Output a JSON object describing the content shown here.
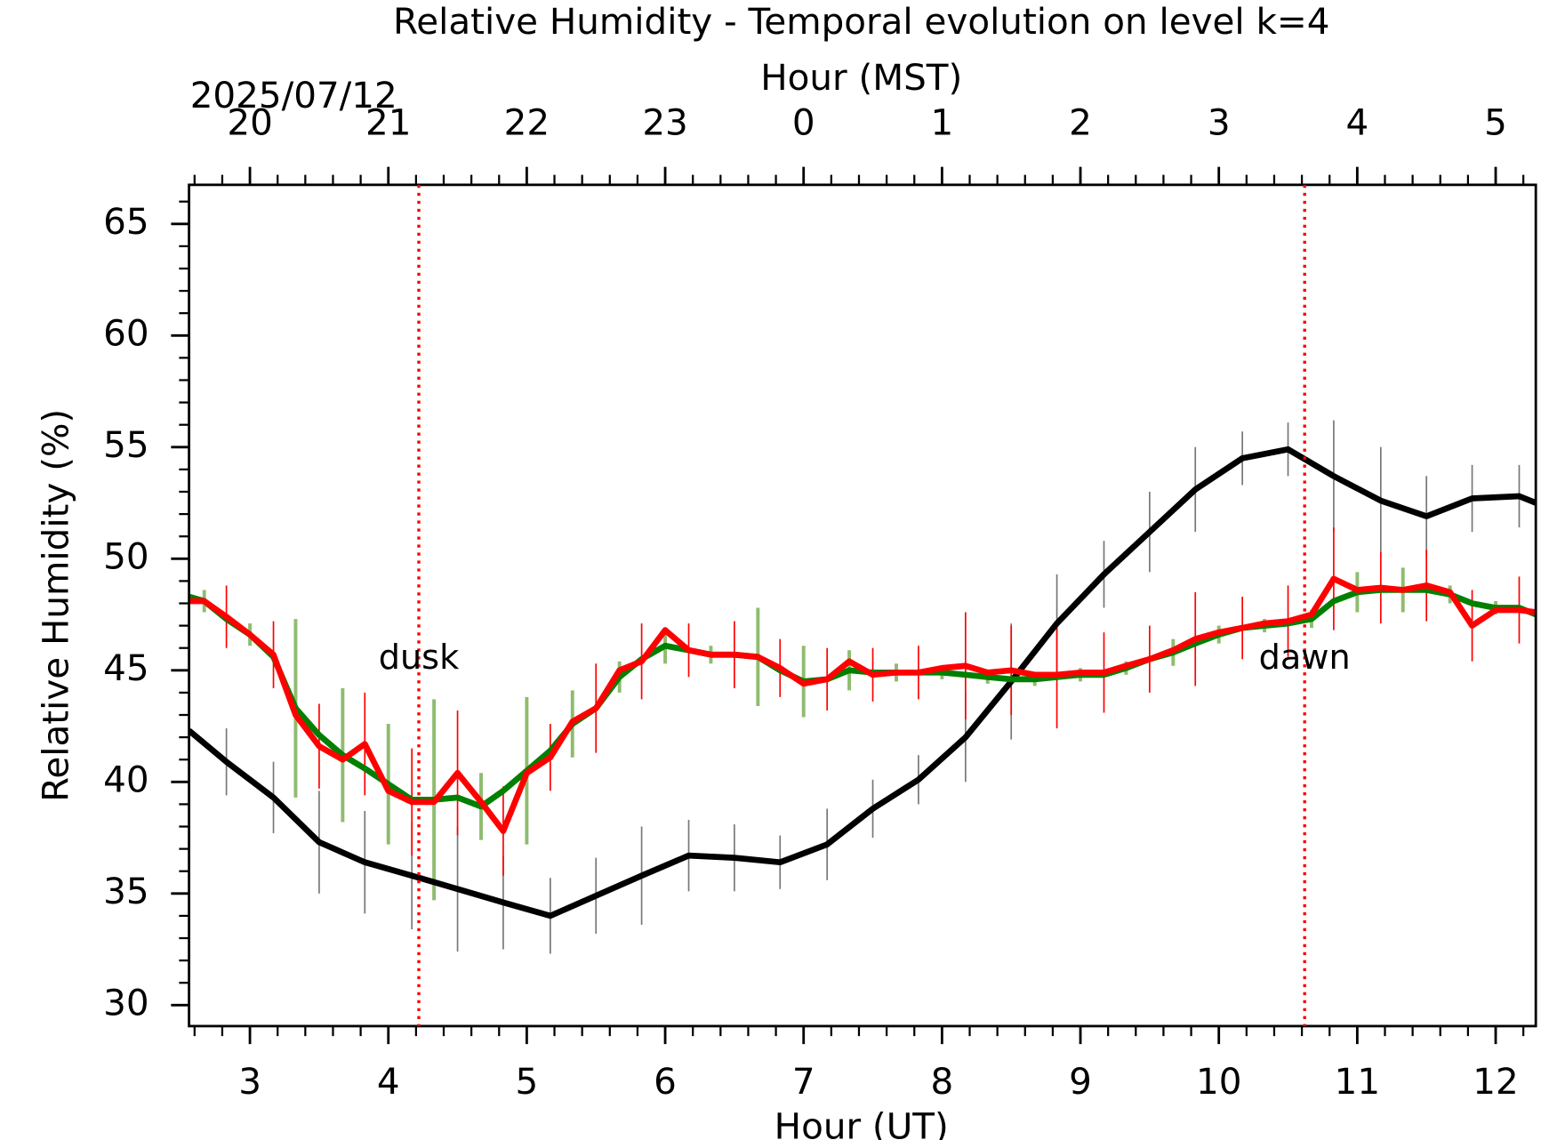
{
  "chart_data": {
    "type": "line",
    "title": "Relative Humidity - Temporal evolution on level k=4",
    "xlabel": "Hour (UT)",
    "ylabel": "Relative Humidity (%)",
    "x2label": "Hour (MST)",
    "date_annotation": "2025/07/12",
    "xlim": [
      2.56,
      12.29
    ],
    "ylim": [
      29.06,
      66.75
    ],
    "xticks": [
      3,
      4,
      5,
      6,
      7,
      8,
      9,
      10,
      11,
      12
    ],
    "yticks": [
      30,
      35,
      40,
      45,
      50,
      55,
      60,
      65
    ],
    "x2ticks": [
      {
        "value": 3,
        "label": "20"
      },
      {
        "value": 4,
        "label": "21"
      },
      {
        "value": 5,
        "label": "22"
      },
      {
        "value": 6,
        "label": "23"
      },
      {
        "value": 7,
        "label": "0"
      },
      {
        "value": 8,
        "label": "1"
      },
      {
        "value": 9,
        "label": "2"
      },
      {
        "value": 10,
        "label": "3"
      },
      {
        "value": 11,
        "label": "4"
      },
      {
        "value": 12,
        "label": "5"
      }
    ],
    "vlines": [
      {
        "x": 4.22,
        "label": "dusk",
        "color": "#ff0000"
      },
      {
        "x": 10.62,
        "label": "dawn",
        "color": "#ff0000"
      }
    ],
    "series": [
      {
        "color": "#000000",
        "error_color": "#777777",
        "x": [
          2.56,
          2.83,
          3.17,
          3.5,
          3.83,
          4.17,
          4.5,
          4.83,
          5.17,
          5.5,
          5.83,
          6.17,
          6.5,
          6.83,
          7.17,
          7.5,
          7.83,
          8.17,
          8.5,
          8.83,
          9.17,
          9.5,
          9.83,
          10.17,
          10.5,
          10.83,
          11.17,
          11.5,
          11.83,
          12.17,
          12.29
        ],
        "values": [
          42.3,
          40.9,
          39.3,
          37.3,
          36.4,
          35.8,
          35.2,
          34.6,
          34.0,
          34.9,
          35.8,
          36.7,
          36.6,
          36.4,
          37.2,
          38.8,
          40.1,
          42.0,
          44.5,
          47.1,
          49.3,
          51.2,
          53.1,
          54.5,
          54.9,
          53.7,
          52.6,
          51.9,
          52.7,
          52.8,
          52.5
        ],
        "errors": [
          null,
          1.5,
          1.6,
          2.3,
          2.3,
          2.4,
          2.8,
          2.1,
          1.7,
          1.7,
          2.2,
          1.6,
          1.5,
          1.2,
          1.6,
          1.3,
          1.1,
          2.0,
          2.6,
          2.2,
          1.5,
          1.8,
          1.9,
          1.2,
          1.2,
          2.5,
          2.4,
          1.8,
          1.5,
          1.4,
          null
        ]
      },
      {
        "color": "#008000",
        "error_color": "#8fbc6f",
        "x": [
          2.56,
          2.67,
          2.83,
          3.0,
          3.17,
          3.33,
          3.5,
          3.67,
          3.83,
          4.0,
          4.17,
          4.33,
          4.5,
          4.67,
          4.83,
          5.0,
          5.17,
          5.33,
          5.5,
          5.67,
          5.83,
          6.0,
          6.17,
          6.33,
          6.5,
          6.67,
          6.83,
          7.0,
          7.17,
          7.33,
          7.5,
          7.67,
          7.83,
          8.0,
          8.17,
          8.33,
          8.5,
          8.67,
          8.83,
          9.0,
          9.17,
          9.33,
          9.5,
          9.67,
          9.83,
          10.0,
          10.17,
          10.33,
          10.5,
          10.67,
          10.83,
          11.0,
          11.17,
          11.33,
          11.5,
          11.67,
          11.83,
          12.0,
          12.17,
          12.29
        ],
        "values": [
          48.3,
          48.1,
          47.3,
          46.6,
          45.6,
          43.3,
          42.1,
          41.2,
          40.6,
          39.9,
          39.2,
          39.2,
          39.3,
          38.9,
          39.6,
          40.5,
          41.4,
          42.6,
          43.3,
          44.7,
          45.5,
          46.1,
          45.9,
          45.7,
          45.7,
          45.6,
          45.0,
          44.5,
          44.6,
          45.0,
          44.9,
          44.9,
          44.9,
          44.9,
          44.8,
          44.7,
          44.6,
          44.6,
          44.7,
          44.8,
          44.8,
          45.1,
          45.5,
          45.8,
          46.2,
          46.6,
          46.9,
          47.0,
          47.1,
          47.3,
          48.1,
          48.5,
          48.6,
          48.6,
          48.6,
          48.4,
          48.0,
          47.8,
          47.8,
          47.5
        ],
        "errors": [
          null,
          0.5,
          null,
          0.5,
          null,
          4,
          null,
          3,
          null,
          2.7,
          null,
          4.5,
          null,
          1.5,
          null,
          3.3,
          null,
          1.5,
          null,
          0.7,
          null,
          0.8,
          null,
          0.4,
          null,
          2.2,
          null,
          1.6,
          null,
          0.9,
          null,
          0.4,
          null,
          0.3,
          null,
          0.3,
          null,
          0.3,
          null,
          0.3,
          null,
          0.3,
          null,
          0.6,
          null,
          0.4,
          null,
          0.3,
          null,
          0.4,
          null,
          0.9,
          null,
          1.0,
          null,
          0.4,
          null,
          0.3,
          null,
          null
        ]
      },
      {
        "color": "#ff0000",
        "error_color": "#ff0000",
        "x": [
          2.56,
          2.67,
          2.83,
          3.0,
          3.17,
          3.33,
          3.5,
          3.67,
          3.83,
          4.0,
          4.17,
          4.33,
          4.5,
          4.67,
          4.83,
          5.0,
          5.17,
          5.33,
          5.5,
          5.67,
          5.83,
          6.0,
          6.17,
          6.33,
          6.5,
          6.67,
          6.83,
          7.0,
          7.17,
          7.33,
          7.5,
          7.67,
          7.83,
          8.0,
          8.17,
          8.33,
          8.5,
          8.67,
          8.83,
          9.0,
          9.17,
          9.33,
          9.5,
          9.67,
          9.83,
          10.0,
          10.17,
          10.33,
          10.5,
          10.67,
          10.83,
          11.0,
          11.17,
          11.33,
          11.5,
          11.67,
          11.83,
          12.0,
          12.17,
          12.29
        ],
        "values": [
          48.1,
          48.1,
          47.4,
          46.6,
          45.7,
          43.0,
          41.6,
          41.0,
          41.7,
          39.6,
          39.1,
          39.1,
          40.4,
          39.1,
          37.8,
          40.4,
          41.1,
          42.7,
          43.3,
          45.0,
          45.4,
          46.8,
          45.9,
          45.7,
          45.7,
          45.6,
          45.1,
          44.4,
          44.6,
          45.4,
          44.8,
          44.9,
          44.9,
          45.1,
          45.2,
          44.9,
          45.0,
          44.8,
          44.8,
          44.9,
          44.9,
          45.2,
          45.5,
          45.9,
          46.4,
          46.7,
          46.9,
          47.1,
          47.2,
          47.5,
          49.1,
          48.6,
          48.7,
          48.6,
          48.8,
          48.5,
          47.0,
          47.7,
          47.7,
          47.6
        ],
        "errors": [
          null,
          null,
          1.4,
          null,
          1.5,
          null,
          1.9,
          null,
          2.3,
          null,
          2.4,
          null,
          2.8,
          null,
          2,
          null,
          1.5,
          null,
          2,
          null,
          1.7,
          null,
          1.2,
          null,
          1.5,
          null,
          1.3,
          null,
          1.4,
          null,
          1.2,
          null,
          1.2,
          null,
          2.4,
          null,
          2,
          null,
          2.4,
          null,
          1.8,
          null,
          1.5,
          null,
          2.1,
          null,
          1.4,
          null,
          1.6,
          null,
          2.3,
          null,
          1.6,
          null,
          1.6,
          null,
          1.6,
          null,
          1.5,
          null
        ]
      }
    ]
  }
}
